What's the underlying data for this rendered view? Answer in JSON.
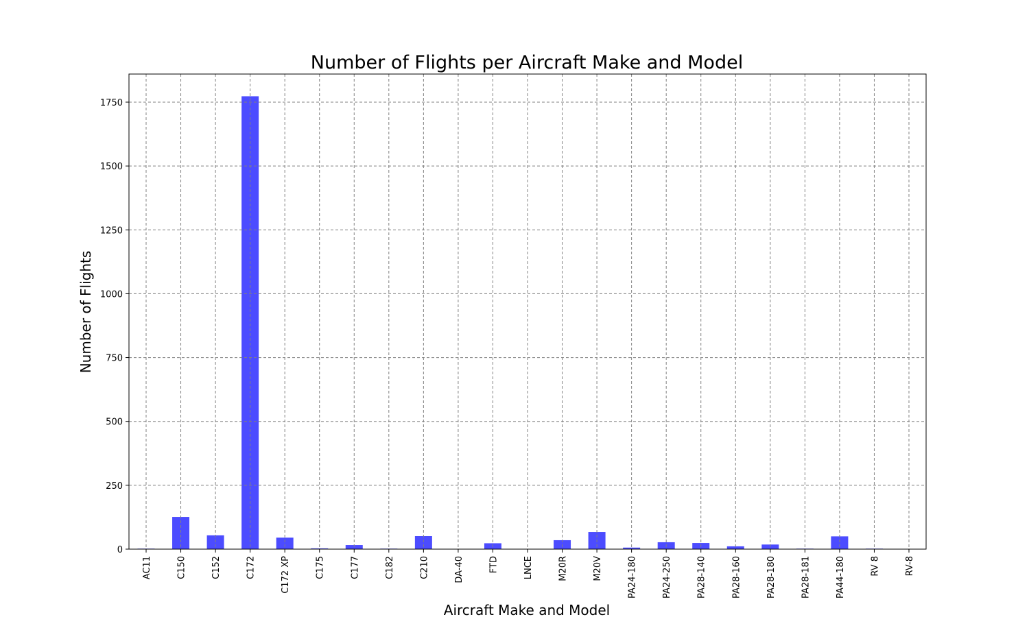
{
  "chart_data": {
    "type": "bar",
    "title": "Number of Flights per Aircraft Make and Model",
    "xlabel": "Aircraft Make and Model",
    "ylabel": "Number of Flights",
    "categories": [
      "AC11",
      "C150",
      "C152",
      "C172",
      "C172 XP",
      "C175",
      "C177",
      "C182",
      "C210",
      "DA-40",
      "FTD",
      "LNCE",
      "M20R",
      "M20V",
      "PA24-180",
      "PA24-250",
      "PA28-140",
      "PA28-160",
      "PA28-180",
      "PA28-181",
      "PA44-180",
      "RV 8",
      "RV-8"
    ],
    "values": [
      2,
      126,
      54,
      1773,
      45,
      3,
      16,
      2,
      51,
      0,
      23,
      0,
      35,
      67,
      6,
      27,
      24,
      11,
      18,
      2,
      50,
      2,
      0
    ],
    "ylim": [
      0,
      1860
    ],
    "yticks": [
      0,
      250,
      500,
      750,
      1000,
      1250,
      1500,
      1750
    ],
    "grid": true,
    "bar_color": "#0000ff",
    "bar_opacity": 0.7
  }
}
